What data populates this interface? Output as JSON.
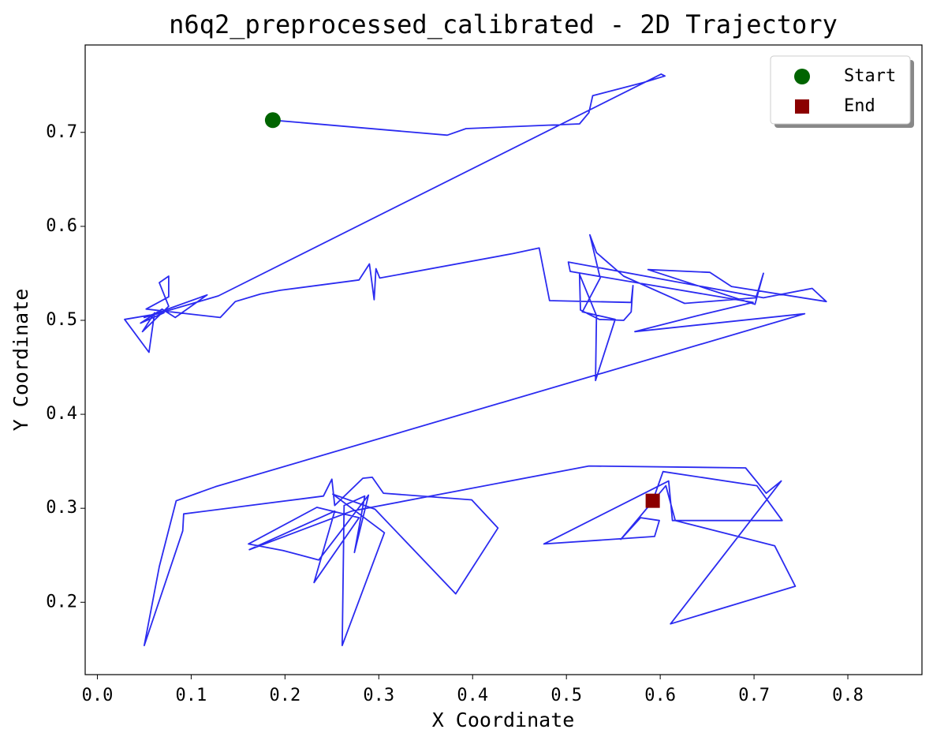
{
  "chart_data": {
    "type": "line",
    "title": "n6q2_preprocessed_calibrated - 2D Trajectory",
    "x_label": "X Coordinate",
    "y_label": "Y Coordinate",
    "xlim": [
      -0.013,
      0.879
    ],
    "ylim": [
      0.123,
      0.793
    ],
    "xticks": [
      {
        "value": 0,
        "label": "0.0"
      },
      0.1,
      0.2,
      0.3,
      0.4,
      0.5,
      0.6,
      0.7,
      0.8
    ],
    "yticks": [
      0.2,
      0.3,
      0.4,
      0.5,
      0.6,
      0.7
    ],
    "grid": false,
    "legend_position": "upper right",
    "trajectory": {
      "color": "#2b2bf0",
      "x": [
        0.187,
        0.373,
        0.393,
        0.514,
        0.524,
        0.528,
        0.582,
        0.605,
        0.601,
        0.129,
        0.05,
        0.117,
        0.083,
        0.069,
        0.046,
        0.071,
        0.029,
        0.055,
        0.061,
        0.048,
        0.076,
        0.066,
        0.076,
        0.076,
        0.052,
        0.131,
        0.147,
        0.174,
        0.195,
        0.279,
        0.29,
        0.292,
        0.295,
        0.297,
        0.301,
        0.443,
        0.471,
        0.482,
        0.569,
        0.571,
        0.569,
        0.561,
        0.535,
        0.515,
        0.514,
        0.532,
        0.531,
        0.552,
        0.517,
        0.536,
        0.525,
        0.532,
        0.561,
        0.626,
        0.702,
        0.71,
        0.701,
        0.587,
        0.653,
        0.676,
        0.777,
        0.762,
        0.71,
        0.502,
        0.504,
        0.699,
        0.64,
        0.573,
        0.754,
        0.126,
        0.084,
        0.066,
        0.05,
        0.091,
        0.092,
        0.241,
        0.25,
        0.253,
        0.283,
        0.293,
        0.305,
        0.399,
        0.427,
        0.382,
        0.296,
        0.251,
        0.306,
        0.261,
        0.263,
        0.285,
        0.274,
        0.289,
        0.236,
        0.198,
        0.161,
        0.234,
        0.279,
        0.231,
        0.253,
        0.162,
        0.271,
        0.524,
        0.691,
        0.713,
        0.729,
        0.611,
        0.744,
        0.722,
        0.616,
        0.606,
        0.558,
        0.579,
        0.599,
        0.594,
        0.476,
        0.609,
        0.613,
        0.73,
        0.703,
        0.603,
        0.592
      ],
      "y": [
        0.713,
        0.697,
        0.704,
        0.709,
        0.721,
        0.739,
        0.753,
        0.76,
        0.762,
        0.526,
        0.503,
        0.527,
        0.503,
        0.512,
        0.497,
        0.508,
        0.501,
        0.466,
        0.508,
        0.488,
        0.515,
        0.54,
        0.547,
        0.525,
        0.512,
        0.503,
        0.52,
        0.528,
        0.532,
        0.543,
        0.56,
        0.545,
        0.522,
        0.555,
        0.545,
        0.571,
        0.577,
        0.521,
        0.519,
        0.537,
        0.509,
        0.5,
        0.501,
        0.511,
        0.549,
        0.505,
        0.436,
        0.501,
        0.509,
        0.545,
        0.591,
        0.572,
        0.547,
        0.518,
        0.524,
        0.55,
        0.517,
        0.554,
        0.551,
        0.536,
        0.52,
        0.534,
        0.524,
        0.562,
        0.552,
        0.519,
        0.505,
        0.488,
        0.507,
        0.323,
        0.308,
        0.238,
        0.154,
        0.276,
        0.294,
        0.313,
        0.331,
        0.303,
        0.332,
        0.333,
        0.316,
        0.309,
        0.279,
        0.209,
        0.299,
        0.315,
        0.274,
        0.154,
        0.303,
        0.313,
        0.253,
        0.314,
        0.245,
        0.255,
        0.262,
        0.301,
        0.29,
        0.221,
        0.297,
        0.256,
        0.297,
        0.345,
        0.343,
        0.316,
        0.329,
        0.177,
        0.217,
        0.26,
        0.287,
        0.324,
        0.267,
        0.29,
        0.287,
        0.27,
        0.262,
        0.329,
        0.287,
        0.287,
        0.324,
        0.339,
        0.308
      ]
    },
    "markers": [
      {
        "name": "Start",
        "color": "#006400",
        "marker": "circle",
        "x": [
          0.187
        ],
        "y": [
          0.713
        ]
      },
      {
        "name": "End",
        "color": "#8b0000",
        "marker": "square",
        "x": [
          0.592
        ],
        "y": [
          0.308
        ]
      }
    ]
  }
}
